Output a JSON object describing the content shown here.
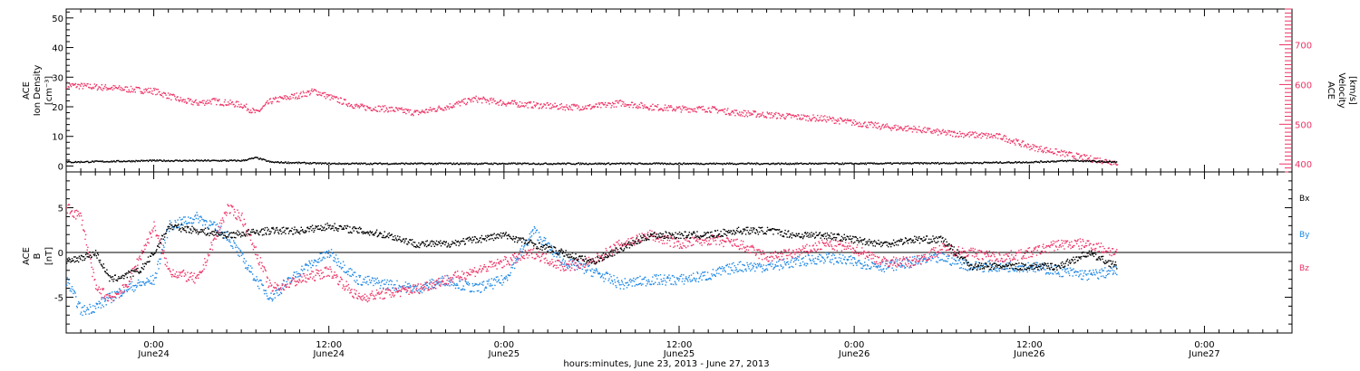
{
  "colors": {
    "black": "#000000",
    "red": "#ee3366",
    "blue": "#1e88e5"
  },
  "x_axis": {
    "title": "hours:minutes, June 23, 2013 - June 27, 2013",
    "range_hours": [
      -6,
      78
    ],
    "ticks": [
      {
        "h": 0,
        "time": "0:00",
        "day": "June24"
      },
      {
        "h": 12,
        "time": "12:00",
        "day": "June24"
      },
      {
        "h": 24,
        "time": "0:00",
        "day": "June25"
      },
      {
        "h": 36,
        "time": "12:00",
        "day": "June25"
      },
      {
        "h": 48,
        "time": "0:00",
        "day": "June26"
      },
      {
        "h": 60,
        "time": "12:00",
        "day": "June26"
      },
      {
        "h": 72,
        "time": "0:00",
        "day": "June27"
      }
    ]
  },
  "panel_top": {
    "left_label": [
      "ACE",
      "Ion Density",
      "[cm⁻³]"
    ],
    "right_label": [
      "ACE",
      "Velocity",
      "[km/s]"
    ]
  },
  "panel_bottom": {
    "left_label": [
      "ACE",
      "B",
      "[nT]"
    ],
    "legend": [
      {
        "label": "Bx",
        "color": "#000000"
      },
      {
        "label": "By",
        "color": "#1e88e5"
      },
      {
        "label": "Bz",
        "color": "#ee3366"
      }
    ]
  },
  "chart_data": [
    {
      "type": "scatter",
      "title": "",
      "xlabel": "hours:minutes, June 23, 2013 - June 27, 2013",
      "ylabel": "ACE Ion Density [cm^-3]",
      "ylim": [
        -2,
        53
      ],
      "yticks": [
        0,
        10,
        20,
        30,
        40,
        50
      ],
      "y2label": "ACE Velocity [km/s]",
      "y2lim": [
        380,
        790
      ],
      "y2ticks": [
        400,
        500,
        600,
        700
      ],
      "series": [
        {
          "axis": "y",
          "color": "#000000",
          "x": [
            -6,
            0,
            6,
            7,
            8,
            12,
            24,
            36,
            48,
            55,
            60,
            63,
            66
          ],
          "values": [
            1.5,
            2,
            2,
            3,
            1.5,
            1,
            1,
            1,
            1,
            1.2,
            1.5,
            2,
            1.5
          ]
        },
        {
          "axis": "y2",
          "color": "#ee3366",
          "x": [
            -6,
            -3,
            -2,
            0,
            2,
            3,
            4,
            6,
            7,
            8,
            10,
            11,
            12,
            14,
            16,
            18,
            20,
            22,
            24,
            26,
            28,
            30,
            32,
            34,
            36,
            38,
            40,
            42,
            44,
            46,
            48,
            50,
            52,
            54,
            56,
            58,
            60,
            62,
            64,
            66
          ],
          "values": [
            600,
            593,
            590,
            585,
            560,
            555,
            560,
            550,
            530,
            560,
            575,
            585,
            570,
            545,
            540,
            530,
            545,
            565,
            555,
            550,
            545,
            545,
            555,
            545,
            540,
            540,
            530,
            525,
            520,
            515,
            505,
            495,
            490,
            480,
            475,
            470,
            445,
            430,
            415,
            405
          ]
        }
      ]
    },
    {
      "type": "scatter",
      "title": "",
      "xlabel": "hours:minutes, June 23, 2013 - June 27, 2013",
      "ylabel": "ACE B [nT]",
      "ylim": [
        -9,
        9
      ],
      "yticks": [
        -5,
        0,
        5
      ],
      "series": [
        {
          "name": "Bx",
          "color": "#000000",
          "x": [
            -6,
            -4,
            -3,
            -1,
            0,
            1,
            3,
            5,
            8,
            10,
            12,
            14,
            16,
            18,
            20,
            22,
            24,
            26,
            28,
            30,
            32,
            34,
            36,
            38,
            40,
            42,
            44,
            46,
            48,
            50,
            52,
            54,
            56,
            58,
            60,
            62,
            64,
            66
          ],
          "values": [
            -1,
            0,
            -3,
            -2,
            0,
            3,
            2.5,
            2,
            2.5,
            2.5,
            3,
            2.5,
            2,
            1,
            1,
            1.5,
            2,
            1,
            0,
            -1,
            0.5,
            2,
            2,
            2,
            2.5,
            2.5,
            2,
            2,
            1.5,
            1,
            1.5,
            1.5,
            -1.5,
            -1.5,
            -1.5,
            -1.5,
            0,
            -1.5
          ]
        },
        {
          "name": "By",
          "color": "#1e88e5",
          "x": [
            -6,
            -5,
            -4,
            -3,
            -2,
            0,
            1,
            3,
            5,
            7,
            8,
            10,
            12,
            14,
            16,
            18,
            20,
            22,
            24,
            26,
            28,
            30,
            32,
            34,
            36,
            38,
            40,
            42,
            44,
            46,
            48,
            50,
            52,
            54,
            56,
            58,
            60,
            62,
            64,
            66
          ],
          "values": [
            -3,
            -6.5,
            -6,
            -5,
            -4,
            -3,
            3,
            4,
            2,
            -3,
            -5,
            -2,
            0,
            -3,
            -3.5,
            -4,
            -3,
            -4,
            -3,
            2.5,
            -1,
            -2,
            -3.5,
            -3,
            -3,
            -2.5,
            -1.5,
            -1.5,
            -1,
            -0.5,
            -1,
            -1.5,
            -1,
            -0.5,
            -1.5,
            -1.5,
            -1.5,
            -2,
            -2.5,
            -2
          ]
        },
        {
          "name": "Bz",
          "color": "#ee3366",
          "x": [
            -6,
            -5,
            -4,
            -3,
            -2,
            0,
            1,
            3,
            5,
            6,
            8,
            10,
            12,
            14,
            16,
            18,
            20,
            22,
            24,
            26,
            28,
            30,
            32,
            34,
            36,
            38,
            40,
            42,
            44,
            46,
            48,
            50,
            52,
            54,
            56,
            58,
            60,
            62,
            64,
            66
          ],
          "values": [
            5,
            4,
            -4,
            -5,
            -4,
            3,
            -2,
            -3,
            5,
            4,
            -4,
            -3,
            -2,
            -5,
            -4.5,
            -4,
            -3,
            -2,
            -1,
            0,
            -1.5,
            -1,
            1,
            2,
            1,
            1.5,
            1,
            -0.5,
            0,
            1,
            0.5,
            -1,
            -1,
            0.5,
            0,
            -0.5,
            0,
            1,
            1,
            0
          ]
        }
      ]
    }
  ]
}
